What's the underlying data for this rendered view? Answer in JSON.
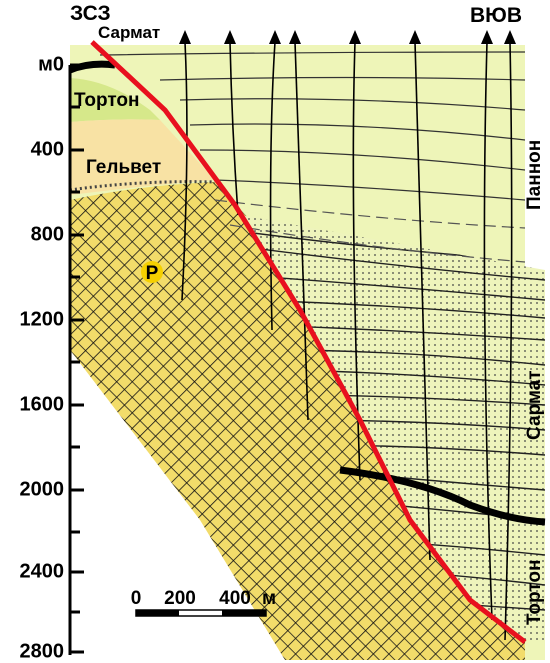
{
  "header": {
    "left": "ЗСЗ",
    "right": "ВЮВ"
  },
  "depth_axis": {
    "labels": [
      "м0",
      "400",
      "800",
      "1200",
      "1600",
      "2000",
      "2400",
      "2800"
    ]
  },
  "formations": {
    "sarmat_top": "Сармат",
    "torton_left": "Тортон",
    "gelvet": "Гельвет",
    "basement": "Р",
    "pannon": "Паннон",
    "sarmat_right": "Сармат",
    "torton_right": "Тортон"
  },
  "scale": {
    "labels": [
      "0",
      "200",
      "400"
    ],
    "unit": "м"
  }
}
